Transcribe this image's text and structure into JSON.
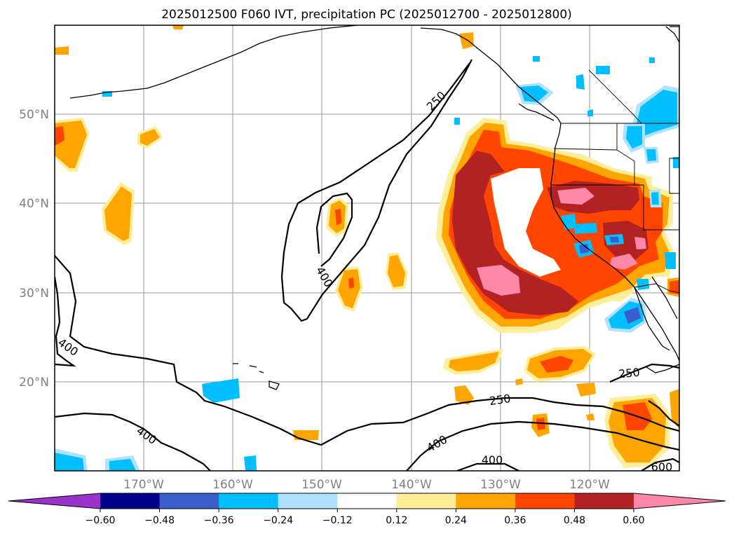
{
  "title": "2025012500 F060 IVT, precipitation PC (2025012700 - 2025012800)",
  "lat_labels": [
    "50°N",
    "40°N",
    "30°N",
    "20°N"
  ],
  "lon_labels": [
    "170°W",
    "160°W",
    "150°W",
    "140°W",
    "130°W",
    "120°W"
  ],
  "contour_labels": [
    "250",
    "400",
    "400",
    "250",
    "250",
    "400",
    "400",
    "400",
    "600"
  ],
  "colorbar": {
    "tick_labels": [
      "−0.60",
      "−0.48",
      "−0.36",
      "−0.24",
      "−0.12",
      "0.12",
      "0.24",
      "0.36",
      "0.48",
      "0.60"
    ],
    "colors": [
      "#9933cc",
      "#00008b",
      "#3a5fcd",
      "#00bfff",
      "#b0e2ff",
      "#ffffff",
      "#ffee99",
      "#ffa500",
      "#ff4500",
      "#b22222",
      "#ff88aa"
    ]
  },
  "colors": {
    "neg_strong": "#3a5fcd",
    "neg_mid": "#00bfff",
    "neg_weak": "#b0e2ff",
    "pos_weak": "#ffee99",
    "pos_low": "#ffa500",
    "pos_mid": "#ff4500",
    "pos_high": "#b22222",
    "pos_max": "#ff88aa"
  }
}
